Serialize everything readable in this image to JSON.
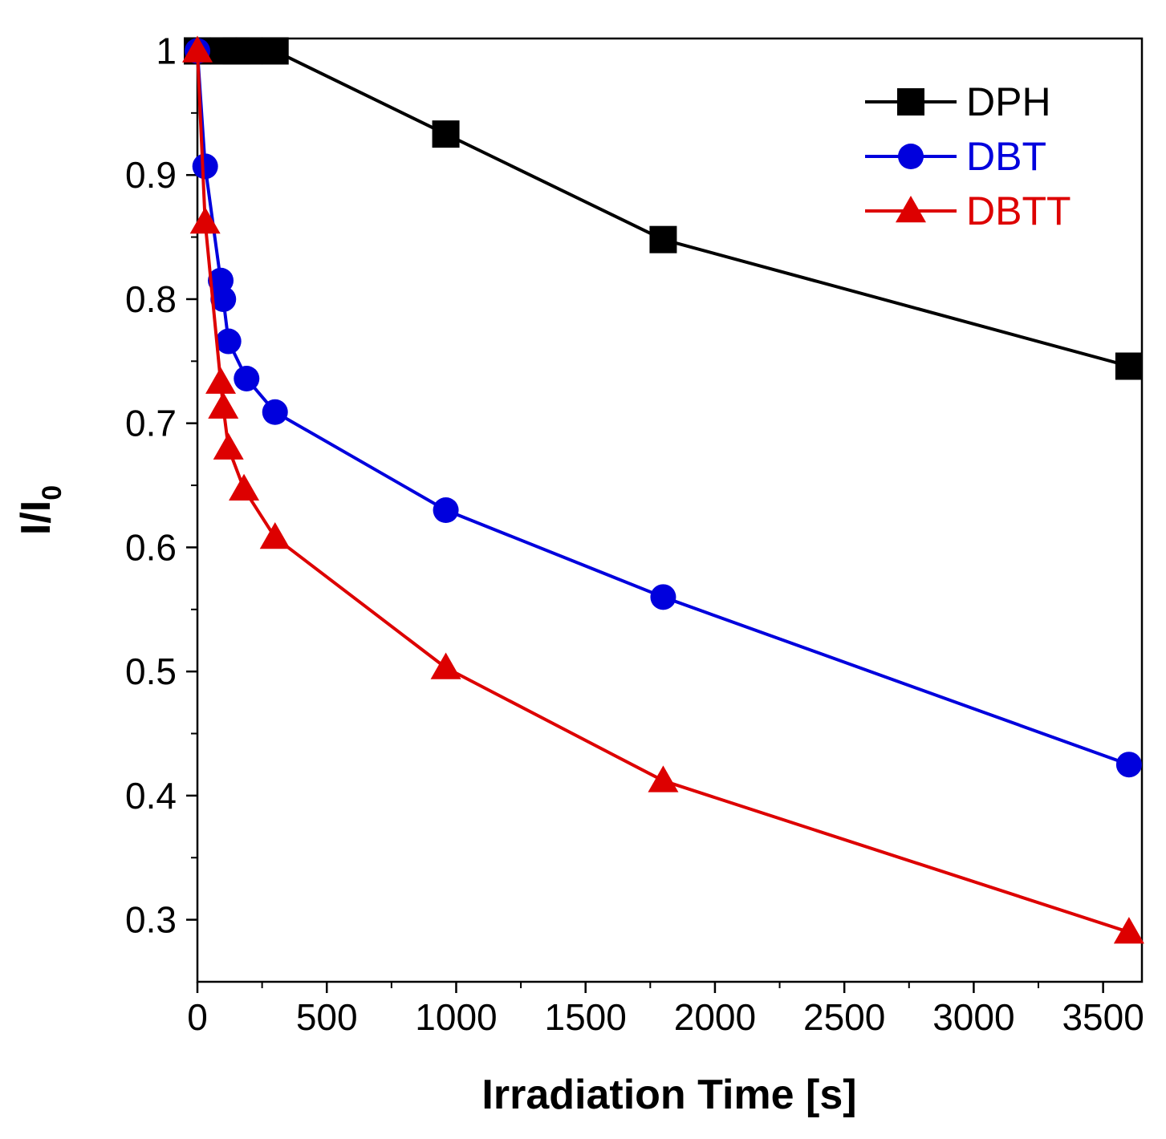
{
  "chart_data": {
    "type": "line",
    "title": "",
    "xlabel": "Irradiation Time [s]",
    "ylabel": "I/I",
    "ylabel_subscript": "0",
    "xlim": [
      0,
      3650
    ],
    "ylim": [
      0.25,
      1.01
    ],
    "x_ticks": [
      0,
      500,
      1000,
      1500,
      2000,
      2500,
      3000,
      3500
    ],
    "x_tick_labels": [
      "0",
      "500",
      "1000",
      "1500",
      "2000",
      "2500",
      "3000",
      "3500"
    ],
    "y_ticks": [
      0.3,
      0.4,
      0.5,
      0.6,
      0.7,
      0.8,
      0.9,
      1.0
    ],
    "y_tick_labels": [
      "0.3",
      "0.4",
      "0.5",
      "0.6",
      "0.7",
      "0.8",
      "0.9",
      "1"
    ],
    "grid": false,
    "legend_position": "top-right",
    "series": [
      {
        "name": "DPH",
        "color": "#000000",
        "marker": "square",
        "x": [
          0,
          100,
          150,
          200,
          300,
          960,
          1800,
          3600
        ],
        "y": [
          1.0,
          1.0,
          1.0,
          1.0,
          1.0,
          0.933,
          0.848,
          0.746
        ]
      },
      {
        "name": "DBT",
        "color": "#0000dd",
        "marker": "circle",
        "x": [
          0,
          30,
          90,
          100,
          120,
          190,
          300,
          960,
          1800,
          3600
        ],
        "y": [
          1.0,
          0.907,
          0.815,
          0.8,
          0.766,
          0.736,
          0.709,
          0.63,
          0.56,
          0.425
        ]
      },
      {
        "name": "DBTT",
        "color": "#dd0000",
        "marker": "triangle",
        "x": [
          0,
          30,
          90,
          100,
          120,
          180,
          300,
          960,
          1800,
          3600
        ],
        "y": [
          1.0,
          0.862,
          0.733,
          0.713,
          0.68,
          0.647,
          0.608,
          0.503,
          0.412,
          0.29
        ]
      }
    ]
  }
}
